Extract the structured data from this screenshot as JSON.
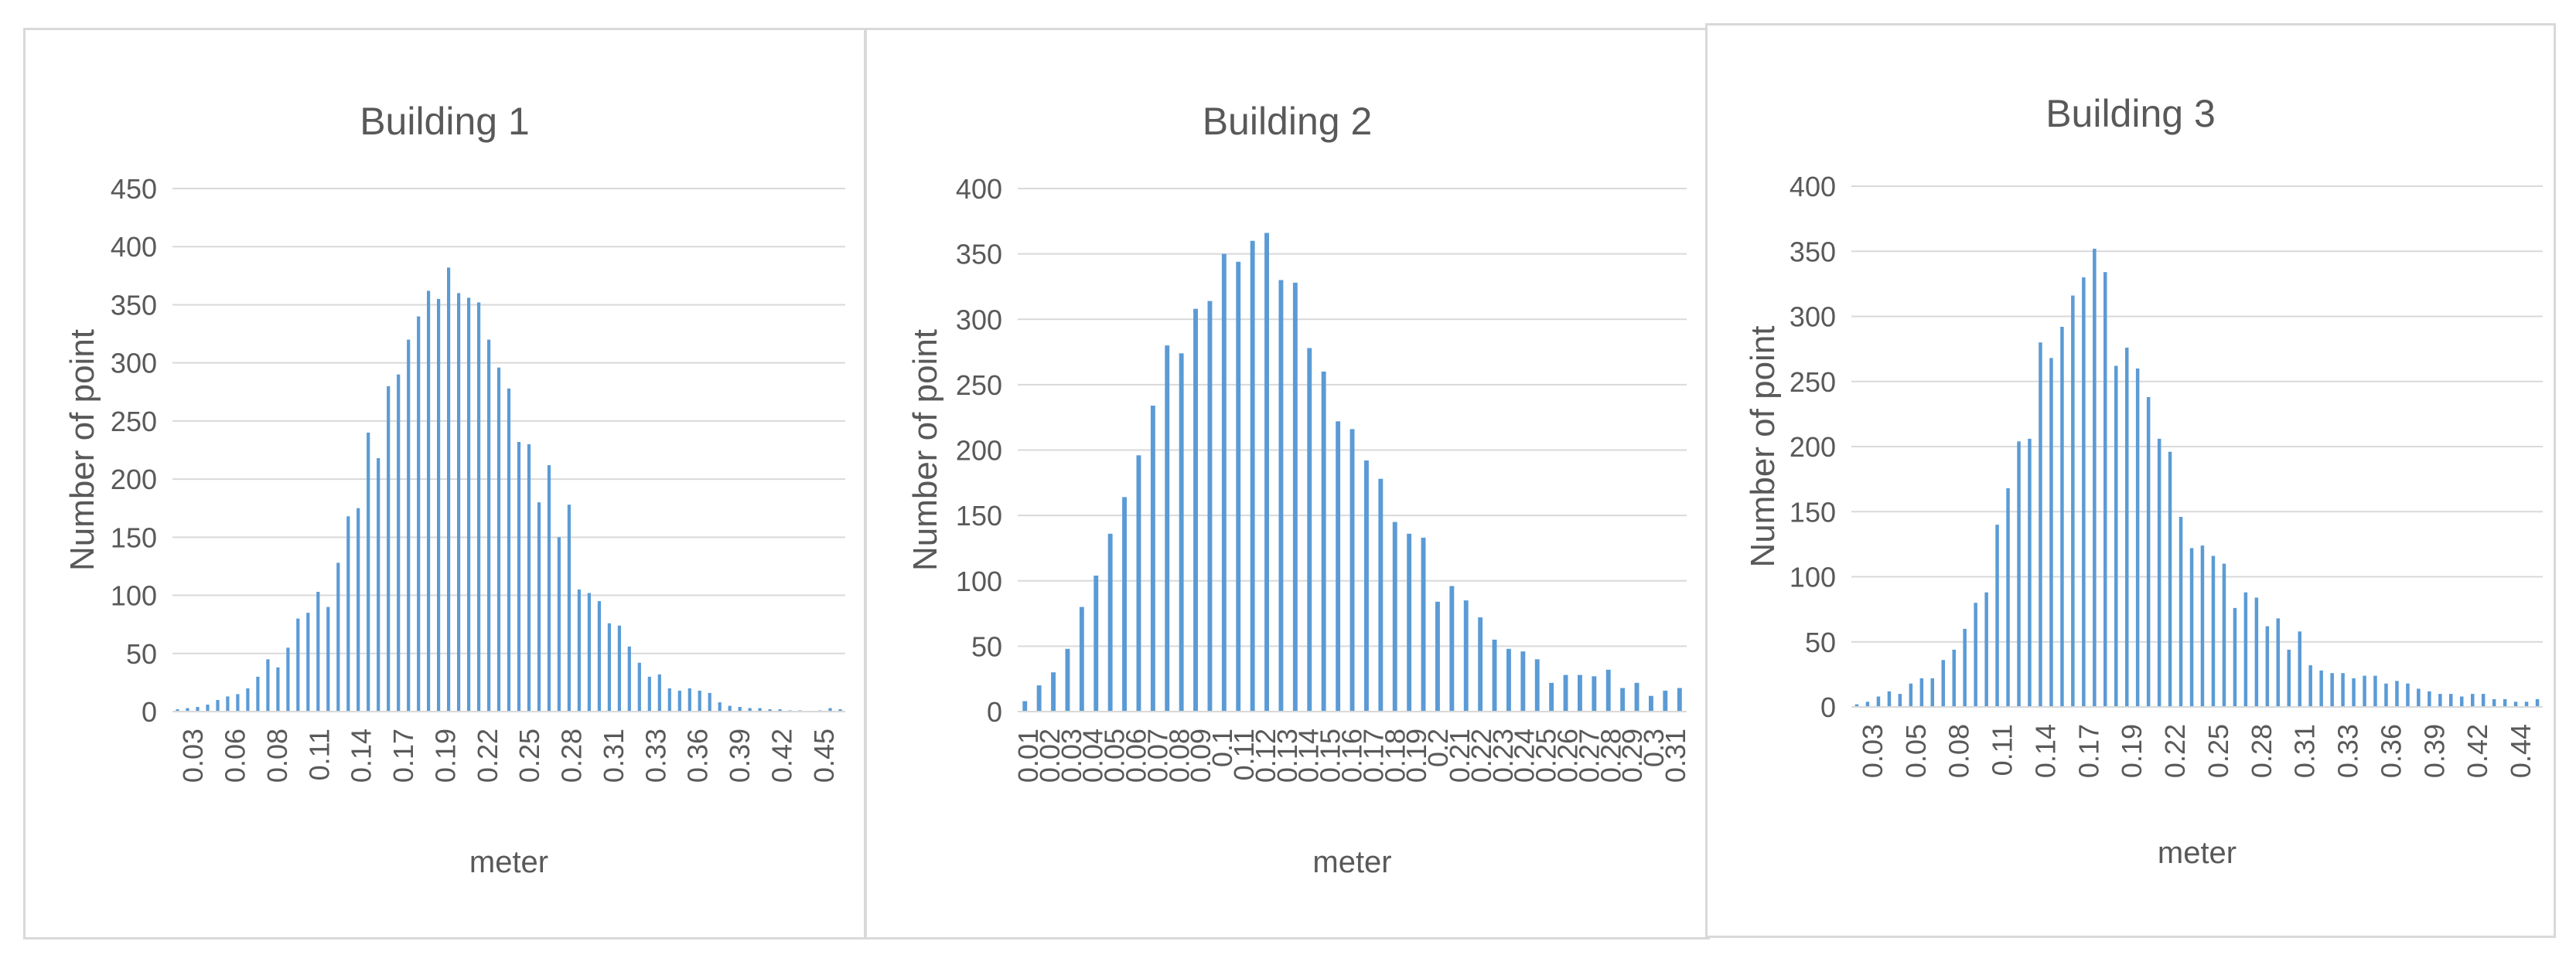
{
  "chart_data": [
    {
      "type": "bar",
      "title": "Building 1",
      "xlabel": "meter",
      "ylabel": "Number of point",
      "ylim": [
        0,
        450
      ],
      "yticks": [
        0,
        50,
        100,
        150,
        200,
        250,
        300,
        350,
        400,
        450
      ],
      "xtick_labels": [
        "0.03",
        "0.06",
        "0.08",
        "0.11",
        "0.14",
        "0.17",
        "0.19",
        "0.22",
        "0.25",
        "0.28",
        "0.31",
        "0.33",
        "0.36",
        "0.39",
        "0.42",
        "0.45"
      ],
      "grid": true,
      "color": "#5b9bd5",
      "values": [
        2,
        3,
        4,
        6,
        10,
        13,
        15,
        20,
        30,
        45,
        38,
        55,
        80,
        85,
        103,
        90,
        128,
        168,
        175,
        240,
        218,
        280,
        290,
        320,
        340,
        362,
        355,
        382,
        360,
        356,
        352,
        320,
        296,
        278,
        232,
        230,
        180,
        212,
        150,
        178,
        105,
        102,
        95,
        76,
        74,
        56,
        42,
        30,
        32,
        20,
        18,
        20,
        18,
        16,
        8,
        5,
        4,
        3,
        3,
        2,
        2,
        1,
        1,
        0,
        1,
        3,
        2
      ]
    },
    {
      "type": "bar",
      "title": "Building 2",
      "xlabel": "meter",
      "ylabel": "Number of point",
      "ylim": [
        0,
        400
      ],
      "yticks": [
        0,
        50,
        100,
        150,
        200,
        250,
        300,
        350,
        400
      ],
      "xtick_labels": [
        "0.01",
        "0.02",
        "0.03",
        "0.04",
        "0.05",
        "0.06",
        "0.07",
        "0.08",
        "0.09",
        "0.1",
        "0.11",
        "0.12",
        "0.13",
        "0.14",
        "0.15",
        "0.16",
        "0.17",
        "0.18",
        "0.19",
        "0.2",
        "0.21",
        "0.22",
        "0.23",
        "0.24",
        "0.25",
        "0.26",
        "0.27",
        "0.28",
        "0.29",
        "0.3",
        "0.31"
      ],
      "grid": true,
      "color": "#5b9bd5",
      "values": [
        8,
        20,
        30,
        48,
        80,
        104,
        136,
        164,
        196,
        234,
        280,
        274,
        308,
        314,
        350,
        344,
        360,
        366,
        330,
        328,
        278,
        260,
        222,
        216,
        192,
        178,
        145,
        136,
        133,
        84,
        96,
        85,
        72,
        55,
        48,
        46,
        40,
        22,
        28,
        28,
        27,
        32,
        18,
        22,
        12,
        16,
        18
      ]
    },
    {
      "type": "bar",
      "title": "Building 3",
      "xlabel": "meter",
      "ylabel": "Number of point",
      "ylim": [
        0,
        400
      ],
      "yticks": [
        0,
        50,
        100,
        150,
        200,
        250,
        300,
        350,
        400
      ],
      "xtick_labels": [
        "0.03",
        "0.05",
        "0.08",
        "0.11",
        "0.14",
        "0.17",
        "0.19",
        "0.22",
        "0.25",
        "0.28",
        "0.31",
        "0.33",
        "0.36",
        "0.39",
        "0.42",
        "0.44"
      ],
      "grid": true,
      "color": "#5b9bd5",
      "values": [
        2,
        4,
        8,
        12,
        10,
        18,
        22,
        22,
        36,
        44,
        60,
        80,
        88,
        140,
        168,
        204,
        206,
        280,
        268,
        292,
        316,
        330,
        352,
        334,
        262,
        276,
        260,
        238,
        206,
        196,
        146,
        122,
        124,
        116,
        110,
        76,
        88,
        84,
        62,
        68,
        44,
        58,
        32,
        28,
        26,
        26,
        22,
        24,
        24,
        18,
        20,
        18,
        14,
        12,
        10,
        10,
        8,
        10,
        10,
        6,
        6,
        4,
        4,
        6
      ]
    }
  ]
}
